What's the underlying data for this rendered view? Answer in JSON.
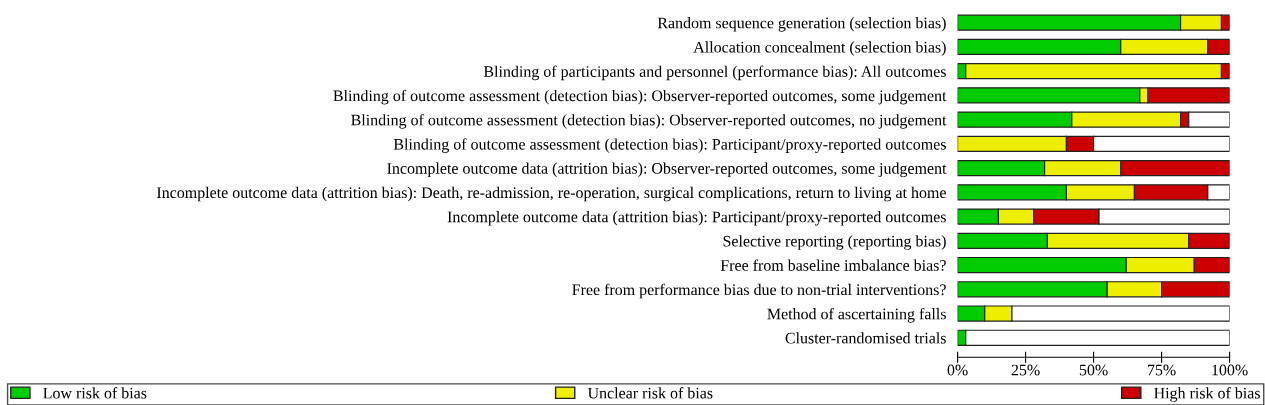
{
  "chart_data": {
    "type": "bar",
    "orientation": "horizontal",
    "stacked": true,
    "categories": [
      "Random sequence generation (selection bias)",
      "Allocation concealment (selection bias)",
      "Blinding of participants and personnel (performance bias): All outcomes",
      "Blinding of outcome assessment (detection bias): Observer-reported outcomes, some judgement",
      "Blinding of outcome assessment (detection bias): Observer-reported outcomes, no judgement",
      "Blinding of outcome assessment (detection bias): Participant/proxy-reported outcomes",
      "Incomplete outcome data (attrition bias): Observer-reported outcomes, some judgement",
      "Incomplete outcome data (attrition bias): Death, re-admission, re-operation, surgical complications, return to living at home",
      "Incomplete outcome data (attrition bias): Participant/proxy-reported outcomes",
      "Selective reporting (reporting bias)",
      "Free from baseline imbalance bias?",
      "Free from performance bias due to non-trial interventions?",
      "Method of ascertaining falls",
      "Cluster-randomised trials"
    ],
    "series": [
      {
        "name": "Low risk of bias",
        "color": "#00cc00",
        "values": [
          82,
          60,
          3,
          67,
          42,
          0,
          32,
          40,
          15,
          33,
          62,
          55,
          10,
          3
        ]
      },
      {
        "name": "Unclear risk of bias",
        "color": "#eeee00",
        "values": [
          15,
          32,
          94,
          3,
          40,
          40,
          28,
          25,
          13,
          52,
          25,
          20,
          10,
          0
        ]
      },
      {
        "name": "High risk of bias",
        "color": "#cc0000",
        "values": [
          3,
          8,
          3,
          30,
          3,
          10,
          40,
          27,
          24,
          15,
          13,
          25,
          0,
          0
        ]
      },
      {
        "color": "#ffffff",
        "values": [
          0,
          0,
          0,
          0,
          15,
          50,
          0,
          8,
          48,
          0,
          0,
          0,
          80,
          97
        ]
      }
    ],
    "xlim": [
      0,
      100
    ],
    "xticks": [
      {
        "value": 0,
        "label": "0%"
      },
      {
        "value": 25,
        "label": "25%"
      },
      {
        "value": 50,
        "label": "50%"
      },
      {
        "value": 75,
        "label": "75%"
      },
      {
        "value": 100,
        "label": "100%"
      }
    ],
    "legend": "bottom",
    "grid": false
  }
}
